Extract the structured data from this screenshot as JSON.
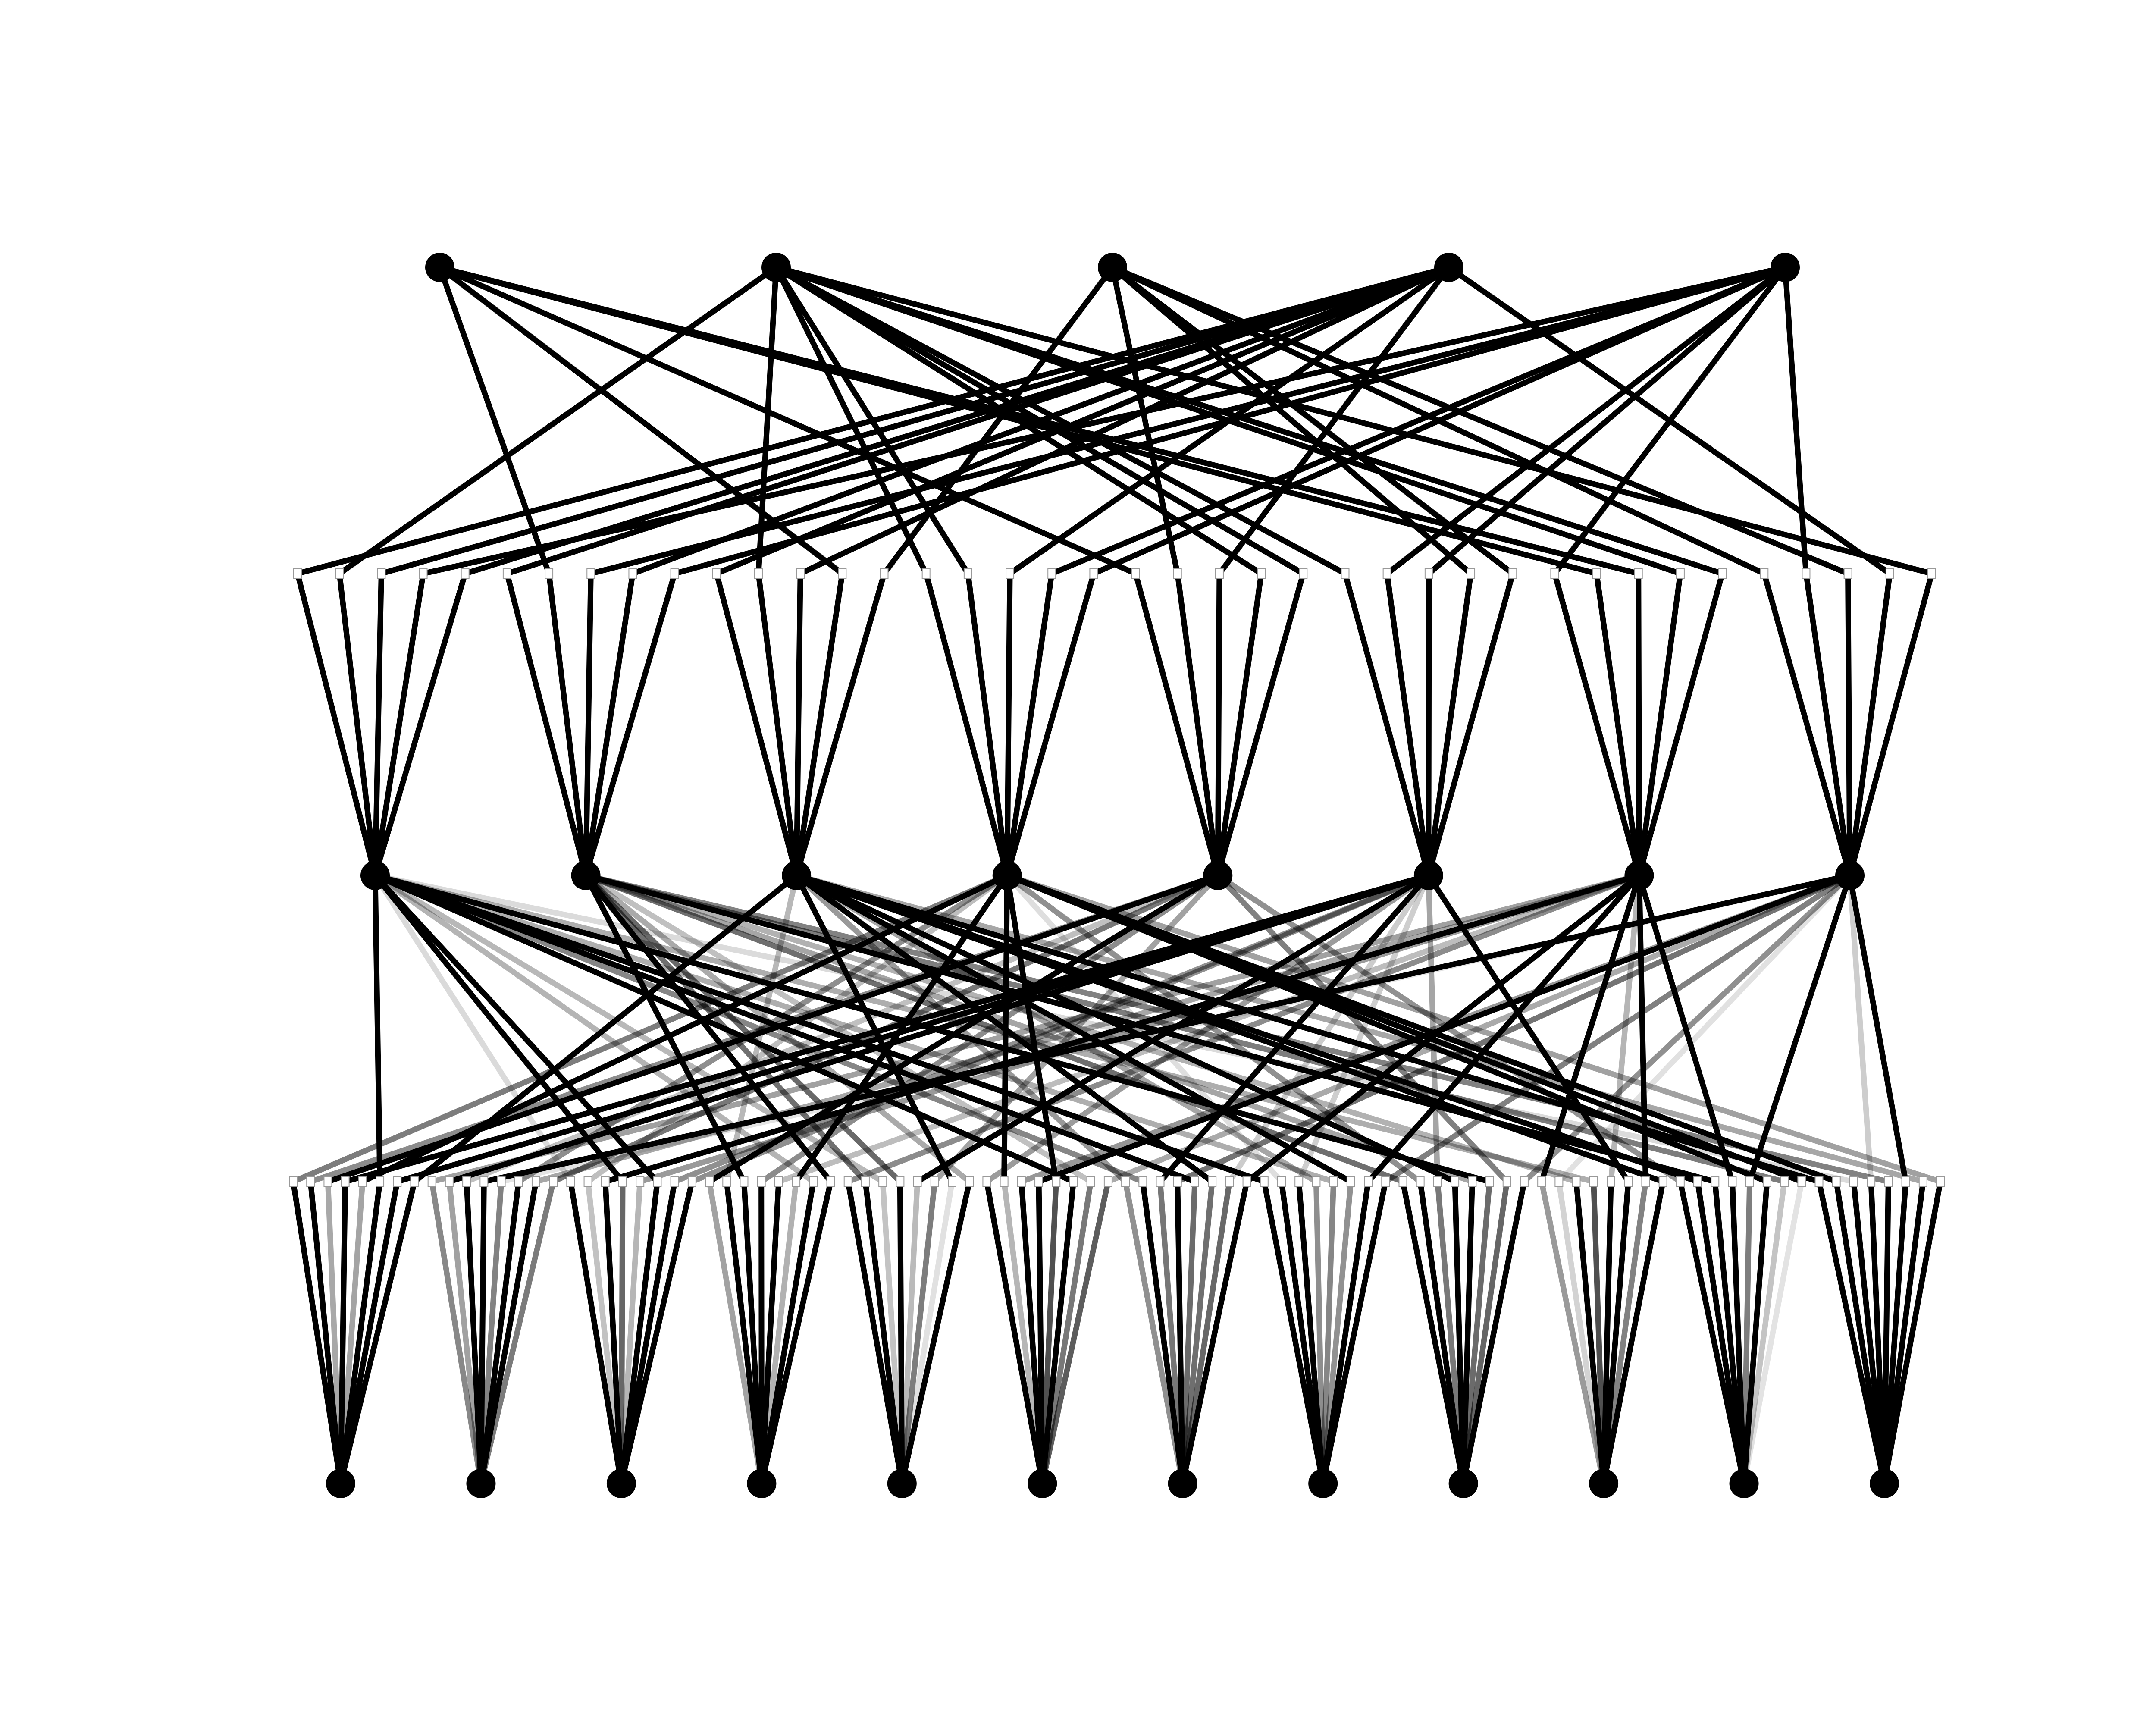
{
  "diagram": {
    "type": "layered-network",
    "description_free": true,
    "colors": {
      "background": "#ffffff",
      "node": "#000000",
      "edge": "#000000",
      "junction_fill": "#ffffff",
      "junction_stroke": "#999999"
    },
    "layers": [
      {
        "id": "L1",
        "node_count": 5
      },
      {
        "id": "L2",
        "node_count": 8
      },
      {
        "id": "L3",
        "node_count": 12
      }
    ],
    "bundles": [
      {
        "from": "L1",
        "to": "L2",
        "junction_count": 40,
        "weight_style": "uniform-dark"
      },
      {
        "from": "L2",
        "to": "L3",
        "junction_count": 96,
        "weight_style": "varied-opacity"
      }
    ]
  }
}
